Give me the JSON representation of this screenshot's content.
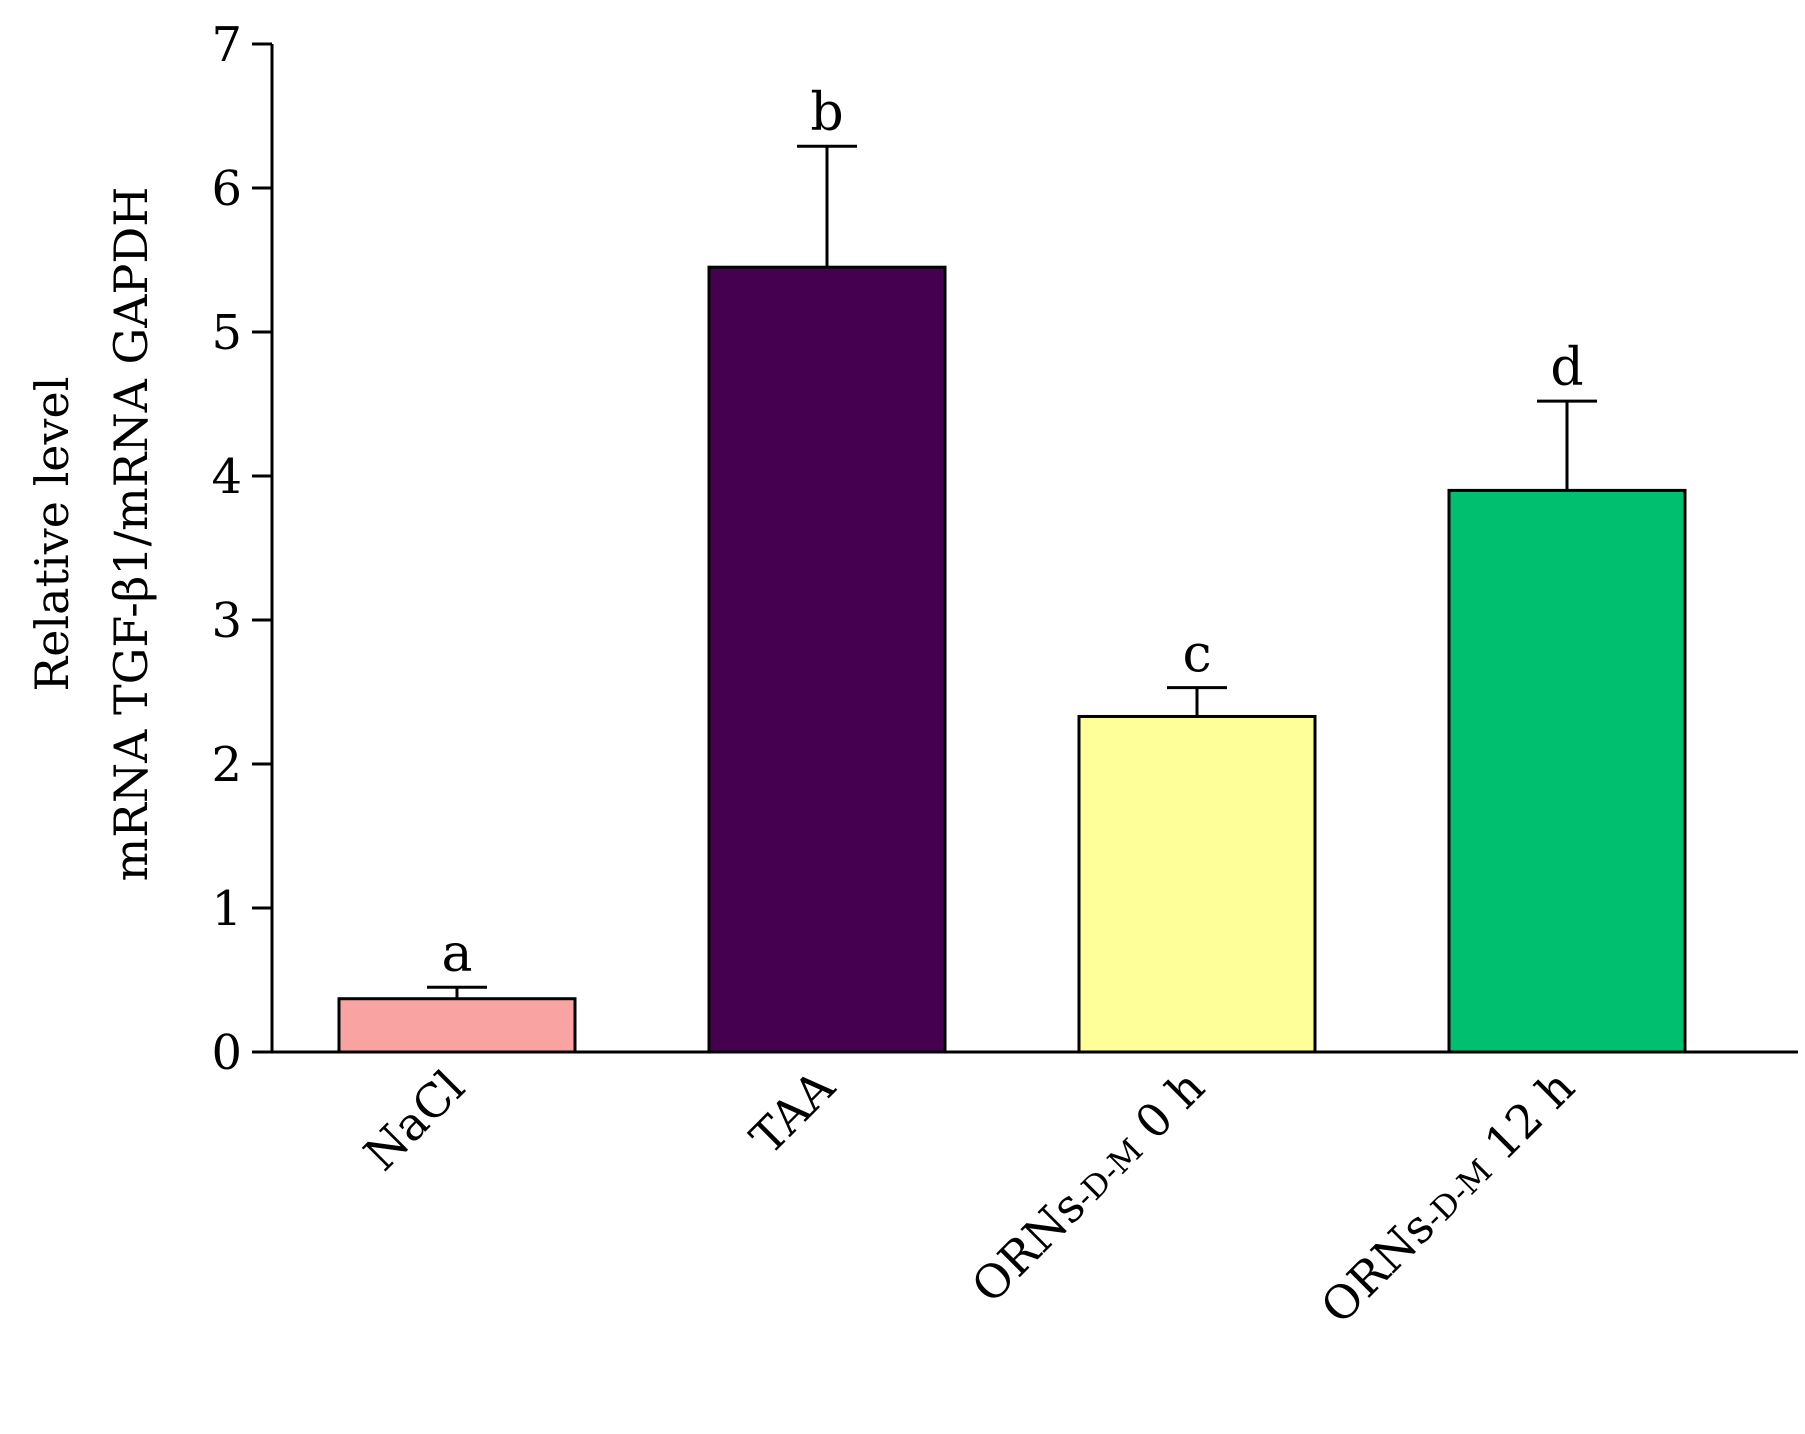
{
  "chart_data": {
    "type": "bar",
    "categories": [
      {
        "label": "NaCl",
        "parts": [
          {
            "text": "NaCl",
            "sub": false
          }
        ]
      },
      {
        "label": "TAA",
        "parts": [
          {
            "text": "TAA",
            "sub": false
          }
        ]
      },
      {
        "label": "ORNs-D-M 0 h",
        "parts": [
          {
            "text": "ORNs",
            "sub": false
          },
          {
            "text": "-D-M",
            "sub": true
          },
          {
            "text": " 0 h",
            "sub": false
          }
        ]
      },
      {
        "label": "ORNs-D-M 12 h",
        "parts": [
          {
            "text": "ORNs",
            "sub": false
          },
          {
            "text": "-D-M",
            "sub": true
          },
          {
            "text": " 12 h",
            "sub": false
          }
        ]
      }
    ],
    "values": [
      0.37,
      5.45,
      2.33,
      3.9
    ],
    "errors": [
      0.08,
      0.84,
      0.2,
      0.62
    ],
    "significance": [
      "a",
      "b",
      "c",
      "d"
    ],
    "colors": [
      "#f9a3a3",
      "#45004f",
      "#ffff99",
      "#00bf6f"
    ],
    "ylabel_lines": [
      "Relative level",
      "mRNA TGF-β1/mRNA GAPDH"
    ],
    "xlabel": "",
    "ylim": [
      0,
      7
    ],
    "yticks": [
      "0",
      "1",
      "2",
      "3",
      "4",
      "5",
      "6",
      "7"
    ],
    "grid": false,
    "legend": "none"
  }
}
